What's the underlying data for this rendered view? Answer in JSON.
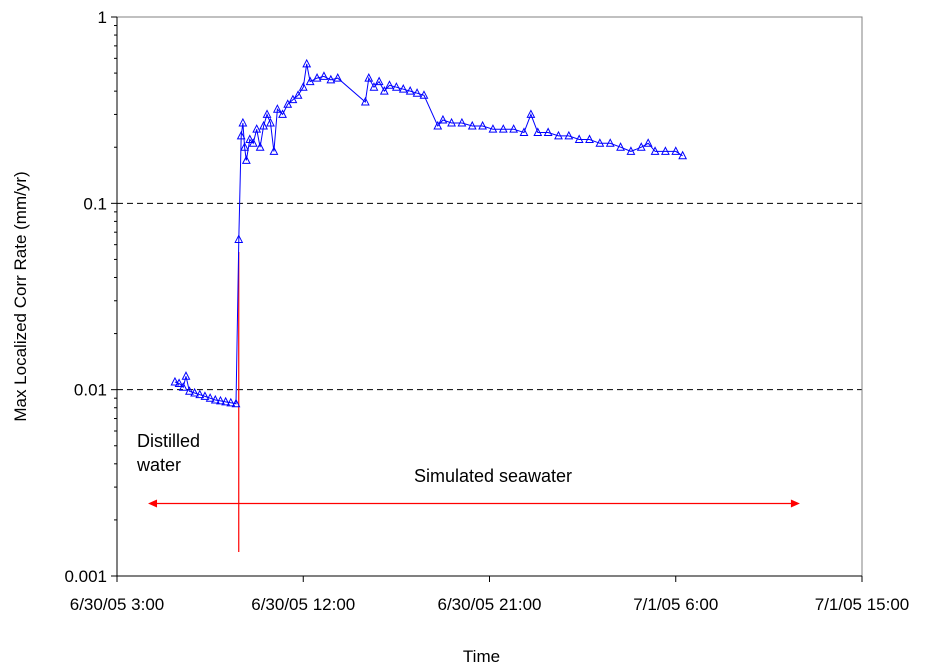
{
  "chart_data": {
    "type": "scatter",
    "title": "",
    "xlabel": "Time",
    "ylabel": "Max Localized Corr Rate (mm/yr)",
    "x_axis": {
      "kind": "datetime",
      "range": [
        "2005-06-30T03:00",
        "2005-07-01T15:00"
      ],
      "ticks": [
        "2005-06-30T03:00",
        "2005-06-30T12:00",
        "2005-06-30T21:00",
        "2005-07-01T06:00",
        "2005-07-01T15:00"
      ],
      "tick_labels": [
        "6/30/05 3:00",
        "6/30/05 12:00",
        "6/30/05 21:00",
        "7/1/05 6:00",
        "7/1/05 15:00"
      ]
    },
    "y_axis": {
      "scale": "log",
      "range": [
        0.001,
        1
      ],
      "ticks": [
        0.001,
        0.01,
        0.1,
        1
      ],
      "tick_labels": [
        "0.001",
        "0.01",
        "0.1",
        "1"
      ]
    },
    "grid": "dashed horizontal lines at 0.01 and 0.1",
    "legend": "none",
    "series": [
      {
        "marker": "triangle",
        "color": "#0000ff",
        "points": [
          [
            "2005-06-30T05:48",
            0.011
          ],
          [
            "2005-06-30T06:00",
            0.0108
          ],
          [
            "2005-06-30T06:12",
            0.0103
          ],
          [
            "2005-06-30T06:20",
            0.0118
          ],
          [
            "2005-06-30T06:30",
            0.0098
          ],
          [
            "2005-06-30T06:45",
            0.0096
          ],
          [
            "2005-06-30T07:00",
            0.0094
          ],
          [
            "2005-06-30T07:15",
            0.0092
          ],
          [
            "2005-06-30T07:30",
            0.009
          ],
          [
            "2005-06-30T07:45",
            0.0088
          ],
          [
            "2005-06-30T08:00",
            0.0087
          ],
          [
            "2005-06-30T08:15",
            0.0086
          ],
          [
            "2005-06-30T08:30",
            0.0085
          ],
          [
            "2005-06-30T08:45",
            0.0084
          ],
          [
            "2005-06-30T08:53",
            0.064
          ],
          [
            "2005-06-30T09:00",
            0.23
          ],
          [
            "2005-06-30T09:05",
            0.27
          ],
          [
            "2005-06-30T09:10",
            0.2
          ],
          [
            "2005-06-30T09:15",
            0.17
          ],
          [
            "2005-06-30T09:25",
            0.22
          ],
          [
            "2005-06-30T09:35",
            0.21
          ],
          [
            "2005-06-30T09:45",
            0.25
          ],
          [
            "2005-06-30T09:55",
            0.2
          ],
          [
            "2005-06-30T10:05",
            0.26
          ],
          [
            "2005-06-30T10:15",
            0.3
          ],
          [
            "2005-06-30T10:25",
            0.27
          ],
          [
            "2005-06-30T10:35",
            0.19
          ],
          [
            "2005-06-30T10:45",
            0.32
          ],
          [
            "2005-06-30T11:00",
            0.3
          ],
          [
            "2005-06-30T11:15",
            0.34
          ],
          [
            "2005-06-30T11:30",
            0.36
          ],
          [
            "2005-06-30T11:45",
            0.38
          ],
          [
            "2005-06-30T12:00",
            0.42
          ],
          [
            "2005-06-30T12:10",
            0.56
          ],
          [
            "2005-06-30T12:20",
            0.45
          ],
          [
            "2005-06-30T12:40",
            0.47
          ],
          [
            "2005-06-30T13:00",
            0.48
          ],
          [
            "2005-06-30T13:20",
            0.46
          ],
          [
            "2005-06-30T13:40",
            0.47
          ],
          [
            "2005-06-30T15:00",
            0.35
          ],
          [
            "2005-06-30T15:10",
            0.47
          ],
          [
            "2005-06-30T15:25",
            0.42
          ],
          [
            "2005-06-30T15:40",
            0.45
          ],
          [
            "2005-06-30T15:55",
            0.4
          ],
          [
            "2005-06-30T16:10",
            0.43
          ],
          [
            "2005-06-30T16:30",
            0.42
          ],
          [
            "2005-06-30T16:50",
            0.41
          ],
          [
            "2005-06-30T17:10",
            0.4
          ],
          [
            "2005-06-30T17:30",
            0.39
          ],
          [
            "2005-06-30T17:50",
            0.38
          ],
          [
            "2005-06-30T18:30",
            0.26
          ],
          [
            "2005-06-30T18:45",
            0.28
          ],
          [
            "2005-06-30T19:10",
            0.27
          ],
          [
            "2005-06-30T19:40",
            0.27
          ],
          [
            "2005-06-30T20:10",
            0.26
          ],
          [
            "2005-06-30T20:40",
            0.26
          ],
          [
            "2005-06-30T21:10",
            0.25
          ],
          [
            "2005-06-30T21:40",
            0.25
          ],
          [
            "2005-06-30T22:10",
            0.25
          ],
          [
            "2005-06-30T22:40",
            0.24
          ],
          [
            "2005-06-30T23:00",
            0.3
          ],
          [
            "2005-06-30T23:20",
            0.24
          ],
          [
            "2005-06-30T23:50",
            0.24
          ],
          [
            "2005-07-01T00:20",
            0.23
          ],
          [
            "2005-07-01T00:50",
            0.23
          ],
          [
            "2005-07-01T01:20",
            0.22
          ],
          [
            "2005-07-01T01:50",
            0.22
          ],
          [
            "2005-07-01T02:20",
            0.21
          ],
          [
            "2005-07-01T02:50",
            0.21
          ],
          [
            "2005-07-01T03:20",
            0.2
          ],
          [
            "2005-07-01T03:50",
            0.19
          ],
          [
            "2005-07-01T04:20",
            0.2
          ],
          [
            "2005-07-01T04:40",
            0.21
          ],
          [
            "2005-07-01T05:00",
            0.19
          ],
          [
            "2005-07-01T05:30",
            0.19
          ],
          [
            "2005-07-01T06:00",
            0.19
          ],
          [
            "2005-07-01T06:20",
            0.18
          ]
        ]
      }
    ],
    "annotations": [
      {
        "text": "Distilled\nwater",
        "position": "lower-left"
      },
      {
        "text": "Simulated seawater",
        "position": "bottom-center"
      }
    ],
    "markers": [
      {
        "kind": "vertical-line",
        "x": "2005-06-30T08:53",
        "color": "#ff0000"
      },
      {
        "kind": "double-arrow",
        "x_range": [
          "2005-06-30T04:30",
          "2005-07-01T12:00"
        ],
        "y": 0.00245,
        "color": "#ff0000"
      }
    ]
  }
}
